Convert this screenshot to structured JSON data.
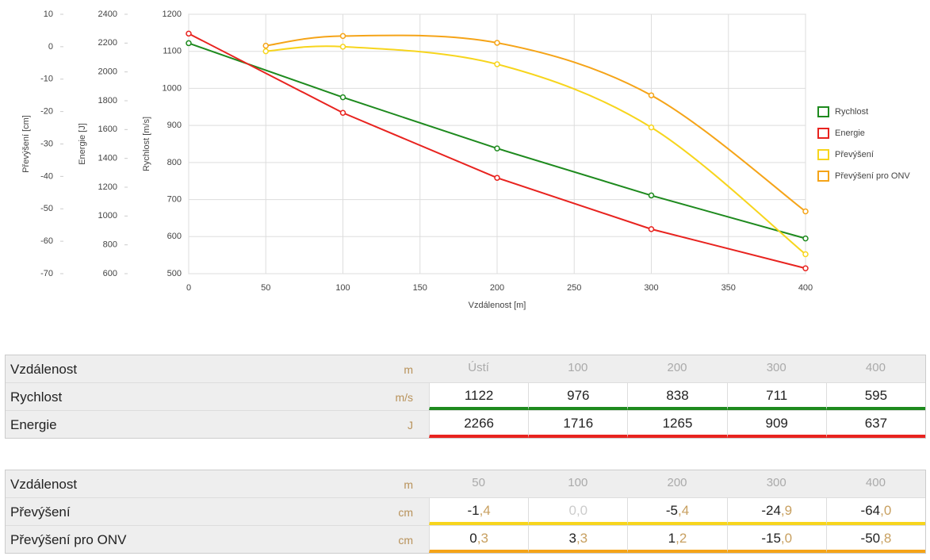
{
  "chart_data": {
    "type": "line",
    "xlabel": "Vzdálenost [m]",
    "xlim": [
      0,
      400
    ],
    "xticks": [
      0,
      50,
      100,
      150,
      200,
      250,
      300,
      350,
      400
    ],
    "ylabel": "Rychlost [m/s]",
    "ylim": [
      500,
      1200
    ],
    "yticks": [
      500,
      600,
      700,
      800,
      900,
      1000,
      1100,
      1200
    ],
    "y2label": "Energie [J]",
    "y2lim": [
      600,
      2400
    ],
    "y2ticks": [
      600,
      800,
      1000,
      1200,
      1400,
      1600,
      1800,
      2000,
      2200,
      2400
    ],
    "y3label": "Převýšení [cm]",
    "y3lim": [
      -70,
      10
    ],
    "y3ticks": [
      -70,
      -60,
      -50,
      -40,
      -30,
      -20,
      -10,
      0,
      10
    ],
    "grid": true,
    "legend": "right",
    "series": [
      {
        "name": "Rychlost",
        "color": "#1e8a1e",
        "axis": "y",
        "smooth": false,
        "x": [
          0,
          100,
          200,
          300,
          400
        ],
        "values": [
          1122,
          976,
          838,
          711,
          595
        ]
      },
      {
        "name": "Energie",
        "color": "#e8231f",
        "axis": "y2",
        "smooth": false,
        "x": [
          0,
          100,
          200,
          300,
          400
        ],
        "values": [
          2266,
          1716,
          1265,
          909,
          637
        ]
      },
      {
        "name": "Převýšení",
        "color": "#f7d51d",
        "axis": "y3",
        "smooth": true,
        "x": [
          50,
          100,
          200,
          300,
          400
        ],
        "values": [
          -1.4,
          0.0,
          -5.4,
          -24.9,
          -64.0
        ],
        "value_labels": [
          "-1,4",
          "0,0",
          "-5,4",
          "-24,9",
          "-64,0"
        ]
      },
      {
        "name": "Převýšení pro ONV",
        "color": "#f5a418",
        "axis": "y3",
        "smooth": true,
        "x": [
          50,
          100,
          200,
          300,
          400
        ],
        "values": [
          0.3,
          3.3,
          1.2,
          -15.0,
          -50.8
        ],
        "value_labels": [
          "0,3",
          "3,3",
          "1,2",
          "-15,0",
          "-50,8"
        ]
      }
    ]
  },
  "tables": [
    {
      "header": {
        "label": "Vzdálenost",
        "unit": "m",
        "cells": [
          "Ústí",
          "100",
          "200",
          "300",
          "400"
        ]
      },
      "rows": [
        {
          "label": "Rychlost",
          "unit": "m/s",
          "series": 0
        },
        {
          "label": "Energie",
          "unit": "J",
          "series": 1
        }
      ]
    },
    {
      "header": {
        "label": "Vzdálenost",
        "unit": "m",
        "cells": [
          "50",
          "100",
          "200",
          "300",
          "400"
        ]
      },
      "rows": [
        {
          "label": "Převýšení",
          "unit": "cm",
          "series": 2
        },
        {
          "label": "Převýšení pro ONV",
          "unit": "cm",
          "series": 3
        }
      ]
    }
  ]
}
